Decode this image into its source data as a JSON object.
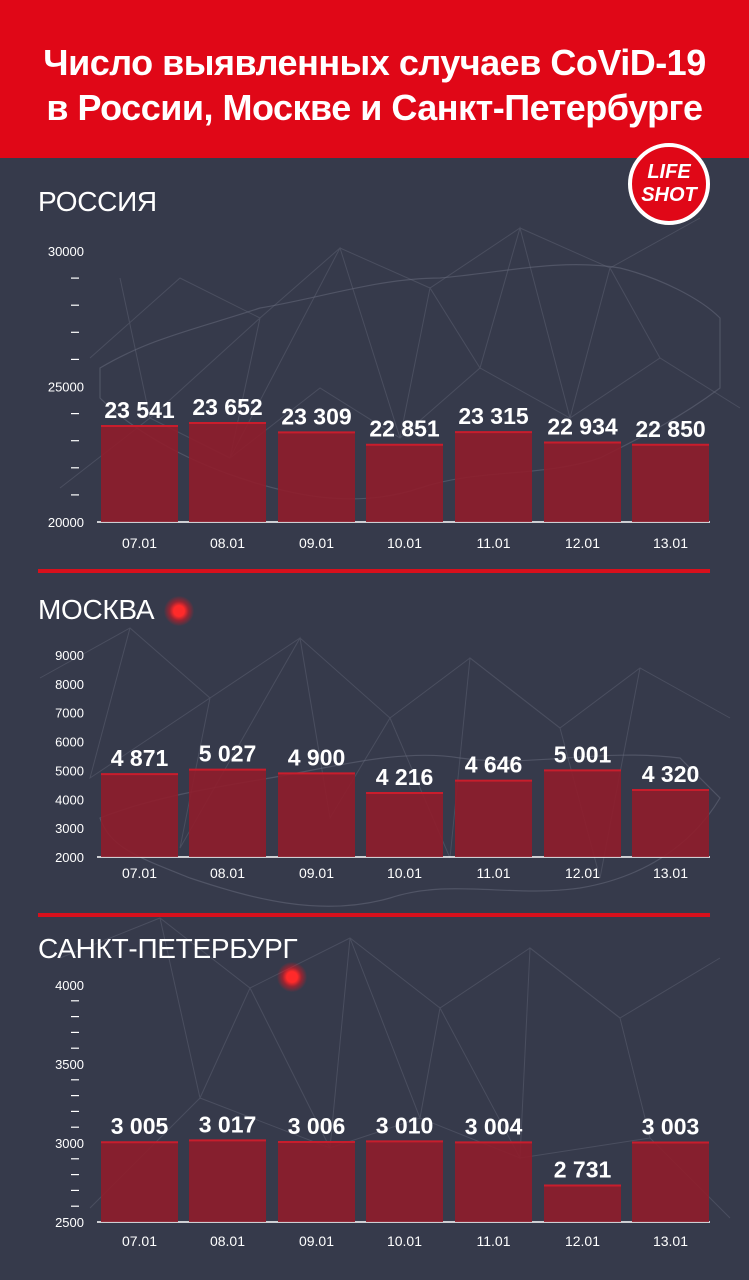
{
  "header": {
    "line1": "Число выявленных случаев CoViD-19",
    "line2": "в России, Москве и Санкт-Петербурге"
  },
  "logo": {
    "line1": "LIFE",
    "line2": "SHOT"
  },
  "colors": {
    "accent": "#e00717",
    "background": "#363a4b",
    "bar": "#8f1d2b",
    "text": "#ffffff"
  },
  "chart_data": [
    {
      "type": "bar",
      "title": "РОССИЯ",
      "categories": [
        "07.01",
        "08.01",
        "09.01",
        "10.01",
        "11.01",
        "12.01",
        "13.01"
      ],
      "values": [
        23541,
        23652,
        23309,
        22851,
        23315,
        22934,
        22850
      ],
      "value_labels": [
        "23 541",
        "23 652",
        "23 309",
        "22 851",
        "23 315",
        "22 934",
        "22 850"
      ],
      "ylim": [
        20000,
        30000
      ],
      "yticks": [
        "20000",
        "25000",
        "30000"
      ],
      "ytick_values": [
        20000,
        25000,
        30000
      ]
    },
    {
      "type": "bar",
      "title": "МОСКВА",
      "categories": [
        "07.01",
        "08.01",
        "09.01",
        "10.01",
        "11.01",
        "12.01",
        "13.01"
      ],
      "values": [
        4871,
        5027,
        4900,
        4216,
        4646,
        5001,
        4320
      ],
      "value_labels": [
        "4 871",
        "5 027",
        "4 900",
        "4 216",
        "4 646",
        "5 001",
        "4 320"
      ],
      "ylim": [
        2000,
        9000
      ],
      "yticks": [
        "2000",
        "3000",
        "4000",
        "5000",
        "6000",
        "7000",
        "8000",
        "9000"
      ],
      "ytick_values": [
        2000,
        3000,
        4000,
        5000,
        6000,
        7000,
        8000,
        9000
      ]
    },
    {
      "type": "bar",
      "title": "САНКТ-ПЕТЕРБУРГ",
      "categories": [
        "07.01",
        "08.01",
        "09.01",
        "10.01",
        "11.01",
        "12.01",
        "13.01"
      ],
      "values": [
        3005,
        3017,
        3006,
        3010,
        3004,
        2731,
        3003
      ],
      "value_labels": [
        "3 005",
        "3 017",
        "3 006",
        "3 010",
        "3 004",
        "2 731",
        "3 003"
      ],
      "ylim": [
        2500,
        4000
      ],
      "yticks": [
        "2500",
        "3000",
        "3500",
        "4000"
      ],
      "ytick_values": [
        2500,
        3000,
        3500,
        4000
      ]
    }
  ]
}
